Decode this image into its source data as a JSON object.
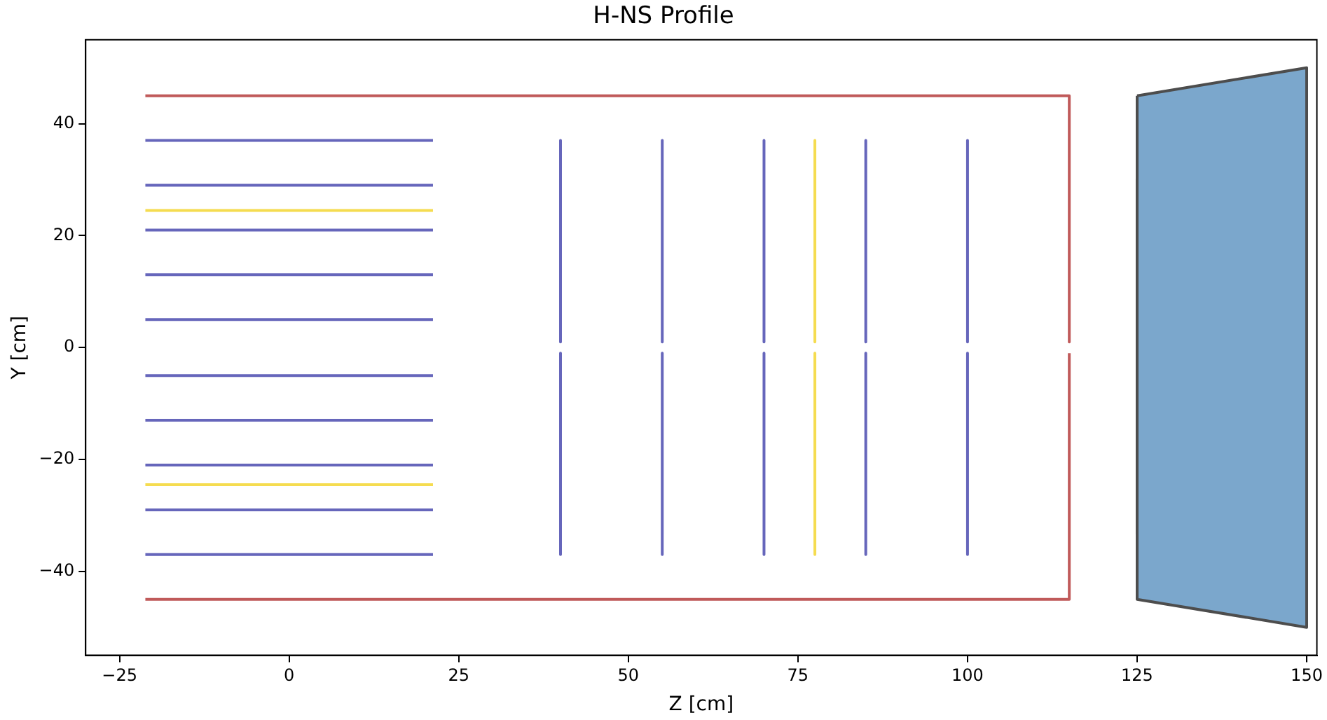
{
  "chart_data": {
    "type": "line",
    "title": "H-NS Profile",
    "xlabel": "Z [cm]",
    "ylabel": "Y [cm]",
    "xlim": [
      -30,
      151.5
    ],
    "ylim": [
      -55,
      55
    ],
    "xticks": [
      {
        "value": -25,
        "label": "−25"
      },
      0,
      25,
      50,
      75,
      100,
      125,
      150
    ],
    "yticks": [
      {
        "value": -40,
        "label": "−40"
      },
      {
        "value": -20,
        "label": "−20"
      },
      0,
      20,
      40
    ],
    "grid": false,
    "legend": false,
    "marker": "none",
    "line_style": "solid",
    "series": [
      {
        "color": "#6666bb",
        "x": [
          -21.2,
          21.2
        ],
        "values": [
          37,
          37
        ]
      },
      {
        "color": "#6666bb",
        "x": [
          -21.2,
          21.2
        ],
        "values": [
          29,
          29
        ]
      },
      {
        "color": "#f5dc50",
        "x": [
          -21.2,
          21.2
        ],
        "values": [
          24.5,
          24.5
        ]
      },
      {
        "color": "#6666bb",
        "x": [
          -21.2,
          21.2
        ],
        "values": [
          21,
          21
        ]
      },
      {
        "color": "#6666bb",
        "x": [
          -21.2,
          21.2
        ],
        "values": [
          13,
          13
        ]
      },
      {
        "color": "#6666bb",
        "x": [
          -21.2,
          21.2
        ],
        "values": [
          5,
          5
        ]
      },
      {
        "color": "#6666bb",
        "x": [
          -21.2,
          21.2
        ],
        "values": [
          -5,
          -5
        ]
      },
      {
        "color": "#6666bb",
        "x": [
          -21.2,
          21.2
        ],
        "values": [
          -13,
          -13
        ]
      },
      {
        "color": "#6666bb",
        "x": [
          -21.2,
          21.2
        ],
        "values": [
          -21,
          -21
        ]
      },
      {
        "color": "#f5dc50",
        "x": [
          -21.2,
          21.2
        ],
        "values": [
          -24.5,
          -24.5
        ]
      },
      {
        "color": "#6666bb",
        "x": [
          -21.2,
          21.2
        ],
        "values": [
          -29,
          -29
        ]
      },
      {
        "color": "#6666bb",
        "x": [
          -21.2,
          21.2
        ],
        "values": [
          -37,
          -37
        ]
      },
      {
        "color": "#6666bb",
        "x": [
          40,
          40
        ],
        "values": [
          37,
          1
        ]
      },
      {
        "color": "#6666bb",
        "x": [
          40,
          40
        ],
        "values": [
          -1,
          -37
        ]
      },
      {
        "color": "#6666bb",
        "x": [
          55,
          55
        ],
        "values": [
          37,
          1
        ]
      },
      {
        "color": "#6666bb",
        "x": [
          55,
          55
        ],
        "values": [
          -1,
          -37
        ]
      },
      {
        "color": "#6666bb",
        "x": [
          70,
          70
        ],
        "values": [
          37,
          1
        ]
      },
      {
        "color": "#6666bb",
        "x": [
          70,
          70
        ],
        "values": [
          -1,
          -37
        ]
      },
      {
        "color": "#f5dc50",
        "x": [
          77.5,
          77.5
        ],
        "values": [
          37,
          1
        ]
      },
      {
        "color": "#f5dc50",
        "x": [
          77.5,
          77.5
        ],
        "values": [
          -1,
          -37
        ]
      },
      {
        "color": "#6666bb",
        "x": [
          85,
          85
        ],
        "values": [
          37,
          1
        ]
      },
      {
        "color": "#6666bb",
        "x": [
          85,
          85
        ],
        "values": [
          -1,
          -37
        ]
      },
      {
        "color": "#6666bb",
        "x": [
          100,
          100
        ],
        "values": [
          37,
          1
        ]
      },
      {
        "color": "#6666bb",
        "x": [
          100,
          100
        ],
        "values": [
          -1,
          -37
        ]
      },
      {
        "color": "#c05a5a",
        "x": [
          -21.2,
          115,
          115
        ],
        "values": [
          45,
          45,
          1
        ]
      },
      {
        "color": "#c05a5a",
        "x": [
          -21.2,
          115,
          115
        ],
        "values": [
          -45,
          -45,
          -1
        ]
      },
      {
        "type": "area",
        "color": "#7ba7cc",
        "x": [
          125,
          150,
          150,
          125,
          125
        ],
        "values": [
          45,
          50,
          -50,
          -45,
          45
        ]
      }
    ]
  }
}
